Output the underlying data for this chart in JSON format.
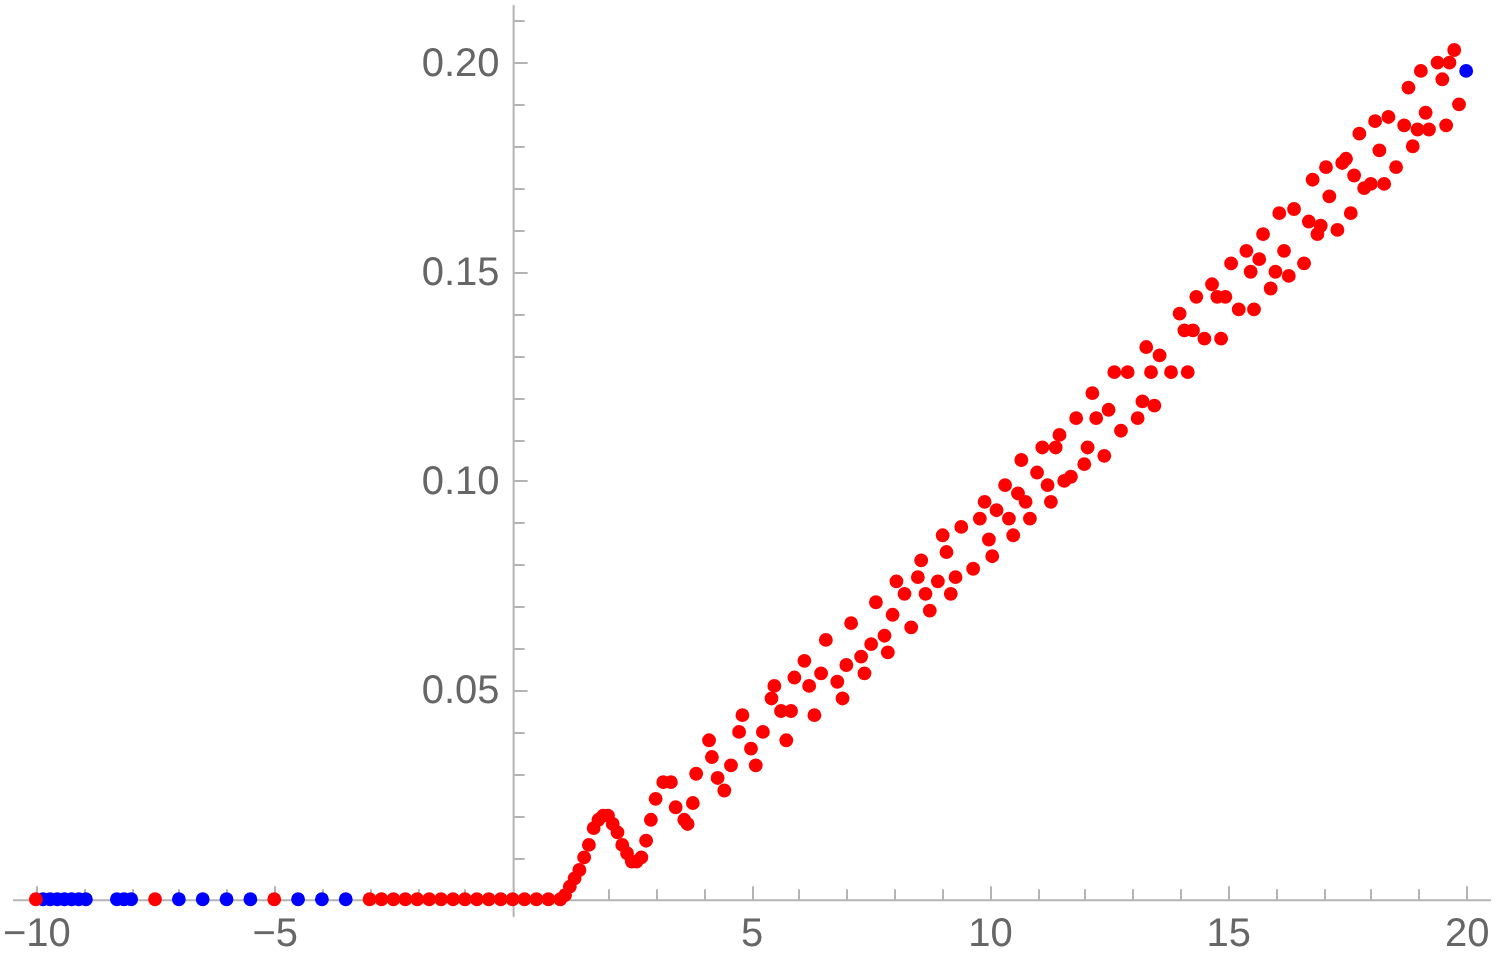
{
  "chart_data": {
    "type": "scatter",
    "marker": "circle",
    "xlim": [
      -10.5,
      20.5
    ],
    "ylim": [
      -0.004,
      0.214
    ],
    "xticks": [
      -10,
      {
        "value": -9,
        "label": null
      },
      {
        "value": -8,
        "label": null
      },
      {
        "value": -7,
        "label": null
      },
      {
        "value": -6,
        "label": null
      },
      -5,
      {
        "value": -4,
        "label": null
      },
      {
        "value": -3,
        "label": null
      },
      {
        "value": -2,
        "label": null
      },
      {
        "value": -1,
        "label": null
      },
      {
        "value": 1,
        "label": null
      },
      {
        "value": 2,
        "label": null
      },
      {
        "value": 3,
        "label": null
      },
      {
        "value": 4,
        "label": null
      },
      5,
      {
        "value": 6,
        "label": null
      },
      {
        "value": 7,
        "label": null
      },
      {
        "value": 8,
        "label": null
      },
      {
        "value": 9,
        "label": null
      },
      10,
      {
        "value": 11,
        "label": null
      },
      {
        "value": 12,
        "label": null
      },
      {
        "value": 13,
        "label": null
      },
      {
        "value": 14,
        "label": null
      },
      15,
      {
        "value": 16,
        "label": null
      },
      {
        "value": 17,
        "label": null
      },
      {
        "value": 18,
        "label": null
      },
      {
        "value": 19,
        "label": null
      },
      20
    ],
    "yticks": [
      {
        "value": 0.01,
        "label": null
      },
      {
        "value": 0.02,
        "label": null
      },
      {
        "value": 0.03,
        "label": null
      },
      {
        "value": 0.04,
        "label": null
      },
      0.05,
      {
        "value": 0.06,
        "label": null
      },
      {
        "value": 0.07,
        "label": null
      },
      {
        "value": 0.08,
        "label": null
      },
      {
        "value": 0.09,
        "label": null
      },
      {
        "value": 0.1,
        "label": "0.10"
      },
      {
        "value": 0.11,
        "label": null
      },
      {
        "value": 0.12,
        "label": null
      },
      {
        "value": 0.13,
        "label": null
      },
      {
        "value": 0.14,
        "label": null
      },
      0.15,
      {
        "value": 0.16,
        "label": null
      },
      {
        "value": 0.17,
        "label": null
      },
      {
        "value": 0.18,
        "label": null
      },
      {
        "value": 0.19,
        "label": null
      },
      {
        "value": 0.2,
        "label": "0.20"
      },
      {
        "value": 0.21,
        "label": null
      }
    ],
    "series": [
      {
        "color": "#0000ff",
        "x": [
          -9.85,
          -9.7,
          -9.55,
          -9.4,
          -9.25,
          -9.1,
          -8.95,
          -8.3,
          -8.15,
          -8.0,
          -7.0,
          -6.5,
          -6.0,
          -5.5,
          -4.5,
          -4.0,
          -3.5,
          20
        ],
        "values": [
          0,
          0,
          0,
          0,
          0,
          0,
          0,
          0,
          0,
          0,
          0,
          0,
          0,
          0,
          0,
          0,
          0,
          0.198
        ]
      },
      {
        "color": "#ff0000",
        "x": [
          -10,
          -7.5,
          -5,
          -3,
          -2.75,
          -2.5,
          -2.25,
          -2,
          -1.75,
          -1.5,
          -1.25,
          -1,
          -0.75,
          -0.5,
          -0.25,
          0,
          0.25,
          0.5,
          0.75,
          1.0,
          1.1,
          1.2,
          1.3,
          1.4,
          1.5,
          1.6,
          1.7,
          1.8,
          1.9,
          2.0,
          2.1,
          2.2,
          2.3,
          2.4,
          2.5,
          2.6,
          2.7,
          2.8,
          2.9,
          3.0,
          3.16,
          3.32,
          3.42,
          3.6,
          3.67,
          3.78,
          3.85,
          4.12,
          4.18,
          4.3,
          4.44,
          4.58,
          4.75,
          4.82,
          5.0,
          5.1,
          5.25,
          5.43,
          5.49,
          5.63,
          5.74,
          5.84,
          5.91,
          6.12,
          6.22,
          6.33,
          6.47,
          6.57,
          6.81,
          6.92,
          7.0,
          7.1,
          7.31,
          7.38,
          7.52,
          7.62,
          7.8,
          7.87,
          7.97,
          8.05,
          8.22,
          8.36,
          8.5,
          8.57,
          8.66,
          8.75,
          8.92,
          9.02,
          9.1,
          9.19,
          9.29,
          9.41,
          9.66,
          9.8,
          9.9,
          9.99,
          10.06,
          10.15,
          10.33,
          10.41,
          10.5,
          10.6,
          10.67,
          10.76,
          10.85,
          11.0,
          11.11,
          11.22,
          11.29,
          11.39,
          11.47,
          11.57,
          11.71,
          11.82,
          11.99,
          12.06,
          12.16,
          12.24,
          12.41,
          12.5,
          12.62,
          12.76,
          12.9,
          13.11,
          13.21,
          13.29,
          13.39,
          13.46,
          13.57,
          13.81,
          13.99,
          14.09,
          14.16,
          14.27,
          14.34,
          14.51,
          14.67,
          14.78,
          14.86,
          14.95,
          15.07,
          15.23,
          15.39,
          15.48,
          15.55,
          15.66,
          15.74,
          15.9,
          16.0,
          16.08,
          16.18,
          16.28,
          16.39,
          16.6,
          16.7,
          16.78,
          16.88,
          16.95,
          17.06,
          17.13,
          17.3,
          17.4,
          17.48,
          17.58,
          17.65,
          17.76,
          17.86,
          18.0,
          18.09,
          18.18,
          18.28,
          18.37,
          18.53,
          18.7,
          18.79,
          18.88,
          18.98,
          19.05,
          19.15,
          19.22,
          19.4,
          19.5,
          19.58,
          19.65,
          19.75,
          19.85
        ],
        "values": [
          0,
          0,
          0,
          0,
          0,
          0,
          0,
          0,
          0,
          0,
          0,
          0,
          0,
          0,
          0,
          0,
          0,
          0,
          0,
          0,
          0.001,
          0.003,
          0.005,
          0.007,
          0.01,
          0.013,
          0.017,
          0.019,
          0.02,
          0.02,
          0.018,
          0.016,
          0.013,
          0.011,
          0.009,
          0.009,
          0.01,
          0.014,
          0.019,
          0.024,
          0.028,
          0.028,
          0.022,
          0.019,
          0.018,
          0.023,
          0.03,
          0.038,
          0.034,
          0.029,
          0.026,
          0.032,
          0.04,
          0.044,
          0.036,
          0.032,
          0.04,
          0.048,
          0.051,
          0.045,
          0.038,
          0.045,
          0.053,
          0.057,
          0.051,
          0.044,
          0.054,
          0.062,
          0.052,
          0.048,
          0.056,
          0.066,
          0.058,
          0.054,
          0.061,
          0.071,
          0.063,
          0.059,
          0.068,
          0.076,
          0.073,
          0.065,
          0.077,
          0.081,
          0.073,
          0.069,
          0.076,
          0.087,
          0.083,
          0.073,
          0.077,
          0.089,
          0.079,
          0.091,
          0.095,
          0.086,
          0.082,
          0.093,
          0.099,
          0.091,
          0.087,
          0.097,
          0.105,
          0.095,
          0.091,
          0.102,
          0.108,
          0.099,
          0.095,
          0.108,
          0.111,
          0.1,
          0.101,
          0.115,
          0.104,
          0.108,
          0.121,
          0.115,
          0.106,
          0.117,
          0.126,
          0.112,
          0.126,
          0.115,
          0.119,
          0.132,
          0.126,
          0.118,
          0.13,
          0.126,
          0.14,
          0.136,
          0.126,
          0.136,
          0.144,
          0.134,
          0.147,
          0.144,
          0.134,
          0.144,
          0.152,
          0.141,
          0.155,
          0.15,
          0.141,
          0.153,
          0.159,
          0.146,
          0.15,
          0.164,
          0.155,
          0.149,
          0.165,
          0.152,
          0.162,
          0.172,
          0.159,
          0.161,
          0.175,
          0.168,
          0.16,
          0.176,
          0.177,
          0.164,
          0.173,
          0.183,
          0.17,
          0.171,
          0.186,
          0.179,
          0.171,
          0.187,
          0.175,
          0.185,
          0.194,
          0.18,
          0.184,
          0.198,
          0.188,
          0.184,
          0.2,
          0.196,
          0.185,
          0.2,
          0.203,
          0.19
        ]
      }
    ]
  }
}
